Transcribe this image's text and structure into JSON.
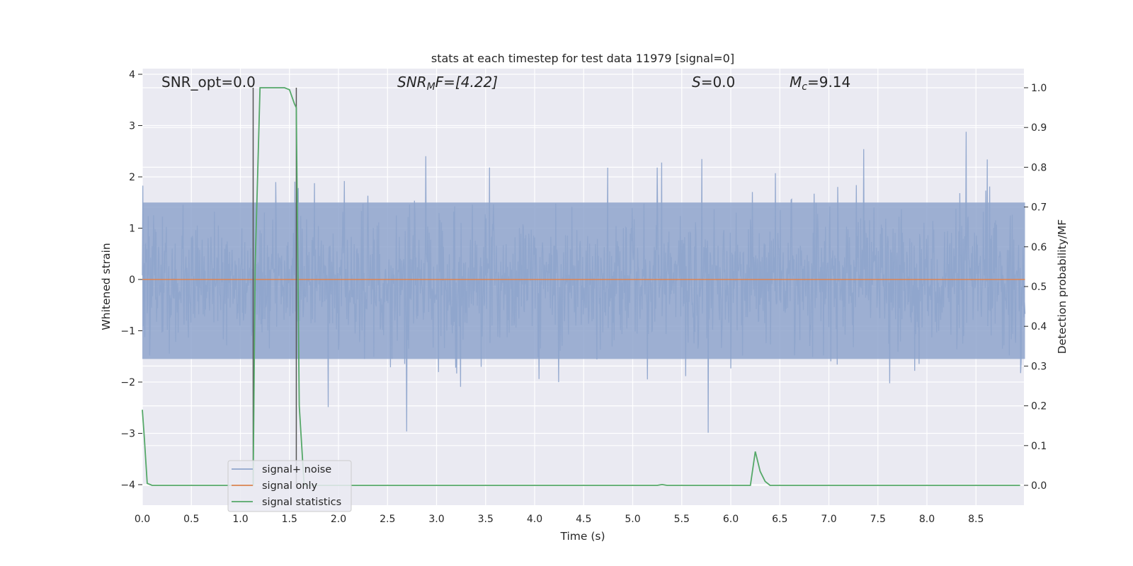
{
  "chart_data": {
    "type": "line",
    "title": "stats at each timestep for test data 11979 [signal=0]",
    "xlabel": "Time (s)",
    "ylabel": "Whitened strain",
    "ylabel_right": "Detection probability/MF",
    "xlim": [
      0.0,
      9.0
    ],
    "ylim": [
      -4.45,
      4.1
    ],
    "ylim_right": [
      -0.05,
      1.04
    ],
    "x_ticks": [
      0.0,
      0.5,
      1.0,
      1.5,
      2.0,
      2.5,
      3.0,
      3.5,
      4.0,
      4.5,
      5.0,
      5.5,
      6.0,
      6.5,
      7.0,
      7.5,
      8.0,
      8.5
    ],
    "x_tick_labels": [
      "0.0",
      "0.5",
      "1.0",
      "1.5",
      "2.0",
      "2.5",
      "3.0",
      "3.5",
      "4.0",
      "4.5",
      "5.0",
      "5.5",
      "6.0",
      "6.5",
      "7.0",
      "7.5",
      "8.0",
      "8.5"
    ],
    "y_ticks": [
      4,
      3,
      2,
      1,
      0,
      -1,
      -2,
      -3,
      -4
    ],
    "y_tick_labels": [
      "4",
      "3",
      "2",
      "1",
      "0",
      "−1",
      "−2",
      "−3",
      "−4"
    ],
    "y_ticks_right": [
      1.0,
      0.9,
      0.8,
      0.7,
      0.6,
      0.5,
      0.4,
      0.3,
      0.2,
      0.1,
      0.0
    ],
    "y_tick_labels_right": [
      "1.0",
      "0.9",
      "0.8",
      "0.7",
      "0.6",
      "0.5",
      "0.4",
      "0.3",
      "0.2",
      "0.1",
      "0.0"
    ],
    "annotations": {
      "snr_opt": "SNR_opt=0.0",
      "snr_mf_base": "SNR",
      "snr_mf_sub": "M",
      "snr_mf_rest": "F=[4.22]",
      "s": "S",
      "s_rest": "=0.0",
      "mc": "M",
      "mc_sub": "c",
      "mc_rest": "=9.14"
    },
    "markers_x": [
      1.13,
      1.57
    ],
    "legend": {
      "placement": "lower-left",
      "entries": [
        "signal+ noise",
        "signal only",
        "signal statistics"
      ]
    },
    "grid": true,
    "series": [
      {
        "name": "signal+ noise",
        "axis": "left",
        "color": "#8fa5cc",
        "description_stats": {
          "core_band": [
            -1.55,
            1.5
          ],
          "peak_max": 3.75,
          "peak_min": -3.65,
          "t_min": 0.0,
          "t_max": 9.0
        }
      },
      {
        "name": "signal only",
        "axis": "left",
        "color": "#dd8452",
        "x": [
          0.0,
          9.0
        ],
        "y": [
          0.0,
          0.0
        ]
      },
      {
        "name": "signal statistics",
        "axis": "right",
        "color": "#55a868",
        "x": [
          0.0,
          0.02,
          0.05,
          0.1,
          0.15,
          1.0,
          1.1,
          1.13,
          1.15,
          1.2,
          1.3,
          1.45,
          1.5,
          1.55,
          1.57,
          1.6,
          1.65,
          1.7,
          2.0,
          4.0,
          5.25,
          5.3,
          5.35,
          6.0,
          6.2,
          6.25,
          6.3,
          6.35,
          6.4,
          7.0,
          8.0,
          8.95
        ],
        "y": [
          0.19,
          0.12,
          0.005,
          0.0,
          0.0,
          0.0,
          0.0,
          0.0,
          0.55,
          1.0,
          1.0,
          1.0,
          0.995,
          0.96,
          0.95,
          0.2,
          0.0,
          0.0,
          0.0,
          0.0,
          0.0,
          0.002,
          0.0,
          0.0,
          0.0,
          0.085,
          0.035,
          0.01,
          0.0,
          0.0,
          0.0,
          0.0
        ]
      }
    ]
  }
}
